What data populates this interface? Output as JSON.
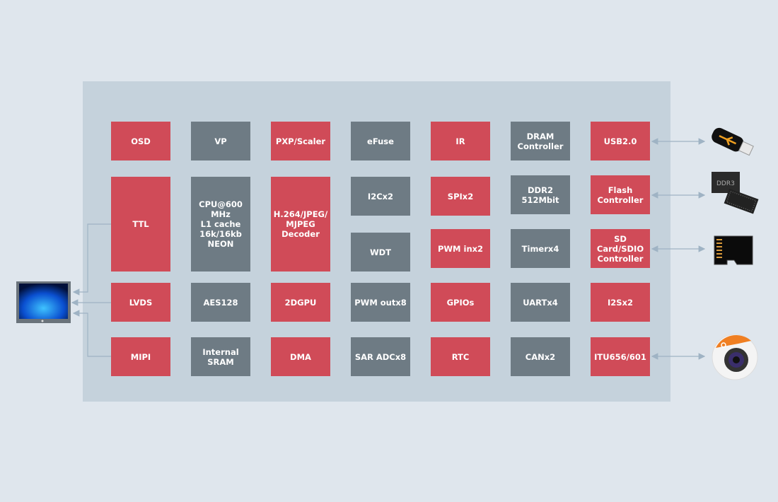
{
  "colors": {
    "background": "#dfe6ed",
    "panel": "#c5d2dc",
    "red_block": "#d04b58",
    "gray_block": "#6e7b84",
    "connector": "#9fb3c4"
  },
  "blocks": {
    "osd": "OSD",
    "vp": "VP",
    "pxp": "PXP/Scaler",
    "efuse": "eFuse",
    "ir": "IR",
    "dram": "DRAM\nController",
    "usb": "USB2.0",
    "ttl": "TTL",
    "cpu": "CPU@600\nMHz\nL1 cache\n16k/16kb\nNEON",
    "decoder": "H.264/JPEG/\nMJPEG\nDecoder",
    "i2c": "I2Cx2",
    "wdt": "WDT",
    "spi": "SPIx2",
    "pwmin": "PWM inx2",
    "ddr2": "DDR2\n512Mbit",
    "timer": "Timerx4",
    "flash": "Flash\nController",
    "sd": "SD\nCard/SDIO\nController",
    "lvds": "LVDS",
    "aes": "AES128",
    "gpu": "2DGPU",
    "pwmout": "PWM outx8",
    "gpio": "GPIOs",
    "uart": "UARTx4",
    "i2s": "I2Sx2",
    "mipi": "MIPI",
    "sram": "Internal\nSRAM",
    "dma": "DMA",
    "adc": "SAR ADCx8",
    "rtc": "RTC",
    "can": "CANx2",
    "itu": "ITU656/601"
  },
  "devices": {
    "memory_chip_label": "DDR3",
    "icons": [
      "monitor-icon",
      "usb-drive-icon",
      "ddr3-chip-icon",
      "microsd-card-icon",
      "camera-icon"
    ]
  }
}
